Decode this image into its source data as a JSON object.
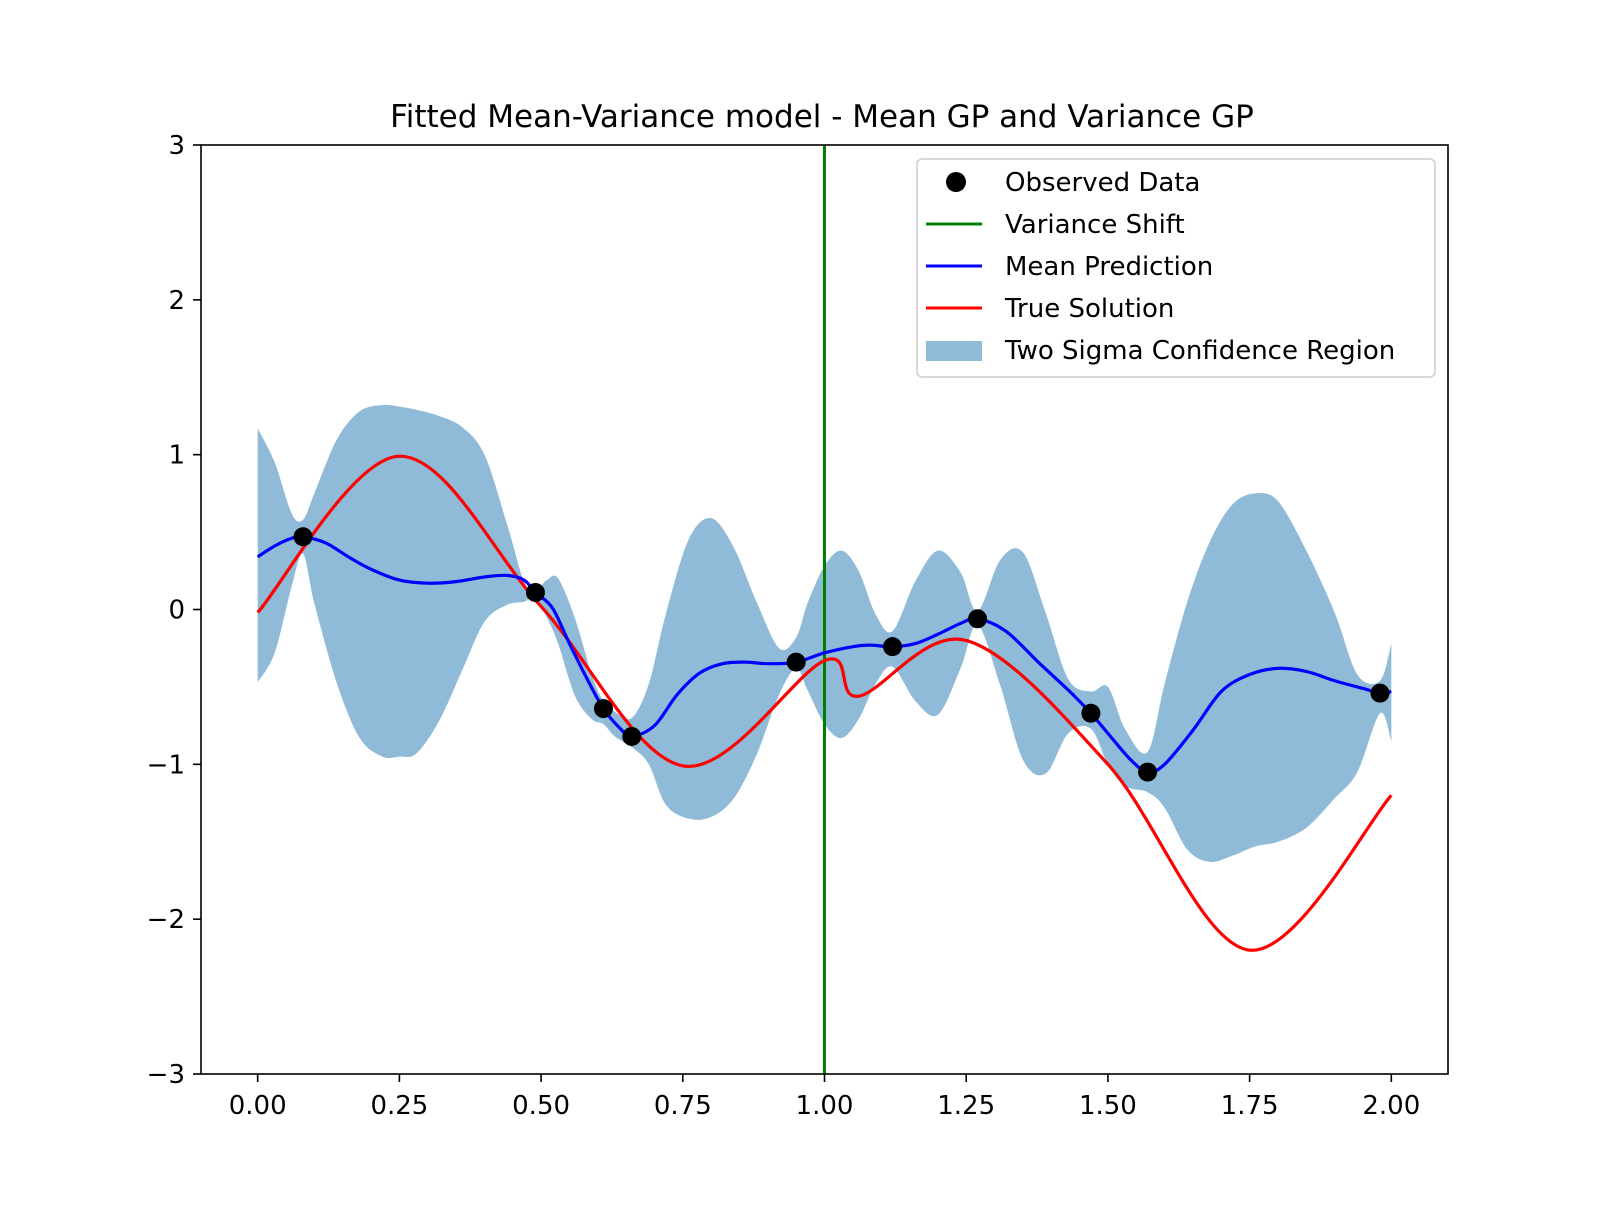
{
  "chart_data": {
    "type": "line",
    "title": "Fitted Mean-Variance model - Mean GP and Variance GP",
    "xlabel": "",
    "ylabel": "",
    "xlim": [
      -0.1,
      2.1
    ],
    "ylim": [
      -3,
      3
    ],
    "grid": false,
    "legend_position": "top-right",
    "x_ticks": [
      0.0,
      0.25,
      0.5,
      0.75,
      1.0,
      1.25,
      1.5,
      1.75,
      2.0
    ],
    "x_tick_labels": [
      "0.00",
      "0.25",
      "0.50",
      "0.75",
      "1.00",
      "1.25",
      "1.50",
      "1.75",
      "2.00"
    ],
    "y_ticks": [
      -3,
      -2,
      -1,
      0,
      1,
      2,
      3
    ],
    "y_tick_labels": [
      "−3",
      "−2",
      "−1",
      "0",
      "1",
      "2",
      "3"
    ],
    "colors": {
      "observed": "#000000",
      "variance_shift": "#008000",
      "mean": "#0000ff",
      "true": "#ff0000",
      "band": "#1f77b4",
      "band_opacity": 0.5
    },
    "legend": {
      "observed_label": "Observed Data",
      "shift_label": "Variance Shift",
      "mean_label": "Mean Prediction",
      "true_label": "True Solution",
      "band_label": "Two Sigma Confidence Region"
    },
    "variance_shift_x": 1.0,
    "observed": {
      "x": [
        0.08,
        0.49,
        0.61,
        0.66,
        0.95,
        1.12,
        1.27,
        1.47,
        1.57,
        1.98
      ],
      "y": [
        0.47,
        0.11,
        -0.64,
        -0.82,
        -0.34,
        -0.24,
        -0.06,
        -0.67,
        -1.05,
        -0.54
      ]
    },
    "true_solution": {
      "formula": "sin(2*pi*x)",
      "x": [
        0.0,
        0.25,
        0.5,
        0.75,
        1.0,
        1.06,
        1.25,
        1.5,
        1.75,
        2.0
      ],
      "y": [
        -0.02,
        0.99,
        0.02,
        -1.01,
        -0.33,
        -0.56,
        -0.2,
        -1.0,
        -2.2,
        -1.2
      ]
    },
    "mean_prediction": {
      "x": [
        0.0,
        0.03,
        0.06,
        0.08,
        0.12,
        0.16,
        0.2,
        0.25,
        0.3,
        0.35,
        0.4,
        0.44,
        0.47,
        0.49,
        0.52,
        0.55,
        0.58,
        0.61,
        0.64,
        0.66,
        0.7,
        0.74,
        0.78,
        0.82,
        0.86,
        0.9,
        0.95,
        1.0,
        1.05,
        1.08,
        1.12,
        1.16,
        1.2,
        1.24,
        1.27,
        1.32,
        1.38,
        1.43,
        1.47,
        1.5,
        1.54,
        1.57,
        1.6,
        1.65,
        1.7,
        1.75,
        1.8,
        1.85,
        1.9,
        1.95,
        1.98,
        2.0
      ],
      "y": [
        0.34,
        0.41,
        0.46,
        0.47,
        0.43,
        0.34,
        0.26,
        0.19,
        0.17,
        0.18,
        0.21,
        0.22,
        0.19,
        0.11,
        0.01,
        -0.22,
        -0.44,
        -0.64,
        -0.77,
        -0.82,
        -0.75,
        -0.55,
        -0.41,
        -0.35,
        -0.34,
        -0.35,
        -0.34,
        -0.28,
        -0.24,
        -0.23,
        -0.24,
        -0.22,
        -0.16,
        -0.09,
        -0.06,
        -0.14,
        -0.35,
        -0.52,
        -0.67,
        -0.8,
        -0.97,
        -1.05,
        -1.0,
        -0.78,
        -0.53,
        -0.42,
        -0.38,
        -0.4,
        -0.46,
        -0.51,
        -0.54,
        -0.53
      ]
    },
    "confidence_band": {
      "x": [
        0.0,
        0.03,
        0.06,
        0.08,
        0.1,
        0.14,
        0.18,
        0.22,
        0.25,
        0.28,
        0.32,
        0.36,
        0.4,
        0.44,
        0.47,
        0.49,
        0.51,
        0.53,
        0.56,
        0.59,
        0.61,
        0.63,
        0.66,
        0.69,
        0.72,
        0.76,
        0.8,
        0.84,
        0.88,
        0.92,
        0.95,
        0.97,
        1.0,
        1.03,
        1.06,
        1.09,
        1.12,
        1.16,
        1.2,
        1.24,
        1.27,
        1.31,
        1.35,
        1.39,
        1.43,
        1.47,
        1.5,
        1.53,
        1.57,
        1.6,
        1.64,
        1.68,
        1.72,
        1.76,
        1.8,
        1.85,
        1.9,
        1.94,
        1.98,
        2.0
      ],
      "upper": [
        1.17,
        0.95,
        0.62,
        0.58,
        0.75,
        1.1,
        1.28,
        1.32,
        1.31,
        1.29,
        1.25,
        1.18,
        1.0,
        0.55,
        0.18,
        0.12,
        0.19,
        0.2,
        -0.06,
        -0.43,
        -0.59,
        -0.66,
        -0.7,
        -0.48,
        -0.03,
        0.45,
        0.59,
        0.4,
        0.05,
        -0.25,
        -0.18,
        0.04,
        0.28,
        0.38,
        0.25,
        -0.03,
        -0.14,
        0.18,
        0.38,
        0.24,
        -0.01,
        0.32,
        0.37,
        -0.02,
        -0.45,
        -0.53,
        -0.5,
        -0.77,
        -0.92,
        -0.48,
        0.05,
        0.44,
        0.68,
        0.75,
        0.7,
        0.38,
        -0.02,
        -0.42,
        -0.46,
        -0.22
      ],
      "lower": [
        -0.47,
        -0.28,
        0.15,
        0.36,
        0.04,
        -0.48,
        -0.83,
        -0.95,
        -0.95,
        -0.93,
        -0.72,
        -0.4,
        -0.08,
        0.03,
        0.05,
        0.08,
        -0.05,
        -0.22,
        -0.56,
        -0.71,
        -0.74,
        -0.82,
        -0.89,
        -1.0,
        -1.26,
        -1.35,
        -1.34,
        -1.22,
        -0.94,
        -0.55,
        -0.38,
        -0.52,
        -0.74,
        -0.83,
        -0.71,
        -0.48,
        -0.37,
        -0.59,
        -0.68,
        -0.38,
        -0.1,
        -0.49,
        -0.97,
        -1.06,
        -0.8,
        -0.77,
        -1.0,
        -1.14,
        -1.18,
        -1.28,
        -1.55,
        -1.63,
        -1.59,
        -1.53,
        -1.5,
        -1.41,
        -1.22,
        -1.05,
        -0.67,
        -0.85
      ]
    }
  }
}
